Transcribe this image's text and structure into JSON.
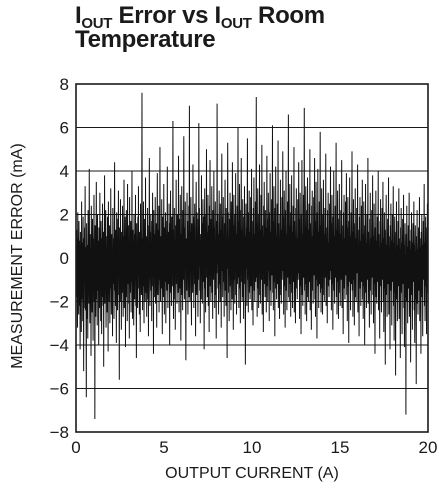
{
  "chart_data": {
    "type": "line",
    "title": {
      "part1": "I",
      "sub1": "OUT",
      "part2": " Error vs I",
      "sub2": "OUT",
      "part3": " Room",
      "line2": "Temperature"
    },
    "xlabel": "OUTPUT CURRENT (A)",
    "ylabel": "MEASUREMENT ERROR (mA)",
    "xlim": [
      0,
      20
    ],
    "ylim": [
      -8,
      8
    ],
    "xticks": [
      0,
      5,
      10,
      15,
      20
    ],
    "xtick_labels": [
      "0",
      "5",
      "10",
      "15",
      "20"
    ],
    "yticks": [
      -8,
      -6,
      -4,
      -2,
      0,
      2,
      4,
      6,
      8
    ],
    "ytick_labels": [
      "−8",
      "−6",
      "−4",
      "−2",
      "0",
      "2",
      "4",
      "6",
      "8"
    ],
    "grid": "horizontal",
    "series": [
      {
        "x_start": 0,
        "x_step": 0.02,
        "values": [
          0.3,
          -0.7,
          1.3,
          -1.8,
          0.9,
          -3.2,
          2.1,
          -1.2,
          0.4,
          -2.6,
          1.7,
          -0.9,
          -2.2,
          0.8,
          -4.2,
          1.2,
          -1.5,
          0.2,
          -3.4,
          2.6,
          -0.6,
          -1.9,
          0.7,
          -2.9,
          1.9,
          -0.4,
          -5.2,
          0.9,
          -2.3,
          1.4,
          -1.1,
          3.3,
          -2.4,
          0.5,
          -1.6,
          -6.4,
          1.6,
          -0.8,
          -2.8,
          0.6,
          -3.7,
          2.2,
          -1.4,
          0.1,
          -2.1,
          4.1,
          -0.9,
          -3.0,
          1.1,
          -1.7,
          0.3,
          -4.5,
          2.4,
          -1.2,
          -0.3,
          -2.5,
          1.8,
          -0.5,
          -3.8,
          0.9,
          -1.3,
          2.9,
          -2.0,
          0.4,
          -7.4,
          1.5,
          -1.0,
          -2.7,
          0.7,
          3.5,
          -1.9,
          0.2,
          -3.1,
          2.0,
          -0.7,
          -1.5,
          0.8,
          -4.0,
          1.4,
          -0.2,
          -2.3,
          3.0,
          -1.1,
          0.5,
          -2.9,
          1.7,
          -0.6,
          -3.5,
          0.9,
          -1.8,
          2.5,
          -0.4,
          -2.2,
          1.2,
          -5.0,
          0.6,
          -1.3,
          3.8,
          -2.1,
          0.3,
          -0.9,
          2.2,
          -3.2,
          1.0,
          -1.6,
          0.4,
          -2.5,
          1.9,
          -0.8,
          -4.3,
          2.6,
          -1.0,
          0.2,
          -2.0,
          1.5,
          -3.0,
          0.7,
          -1.4,
          3.2,
          -0.5,
          -2.6,
          1.1,
          -1.9,
          0.3,
          -3.6,
          2.3,
          -0.7,
          -1.2,
          0.9,
          -2.8,
          1.6,
          4.4,
          -1.5,
          0.1,
          -2.2,
          1.3,
          -0.6,
          -3.9,
          2.1,
          -1.1,
          0.5,
          -2.4,
          1.8,
          -0.9,
          3.1,
          -1.7,
          0.6,
          -5.6,
          1.4,
          -0.3,
          -2.0,
          2.7,
          -1.3,
          0.8,
          -3.3,
          1.2,
          -0.8,
          -1.6,
          2.4,
          -0.2,
          -2.7,
          1.0,
          -1.0,
          3.6,
          -2.3,
          0.4,
          -1.4,
          1.9,
          -4.1,
          0.7,
          -0.5,
          2.2,
          -1.8,
          0.9,
          -2.9,
          3.4,
          -0.7,
          -1.2,
          1.5,
          -2.1,
          0.3,
          -3.7,
          2.8,
          -0.9,
          0.6,
          -1.6,
          1.7,
          -2.5,
          0.2,
          -1.1,
          4.0,
          -0.4,
          -2.8,
          1.3,
          -1.5,
          0.8,
          -3.1,
          2.0,
          -0.6,
          -1.9,
          1.1,
          -0.2,
          2.9,
          -2.2,
          0.5,
          -4.6,
          1.6,
          -1.0,
          0.4,
          -2.3,
          1.9,
          -0.8,
          3.3,
          -1.4,
          0.7,
          -2.6,
          1.2,
          -0.3,
          -3.4,
          2.5,
          -1.2,
          0.1,
          -1.7,
          1.4,
          7.6,
          -0.9,
          -2.4,
          0.9,
          -1.3,
          2.6,
          -0.5,
          -3.0,
          1.8,
          -1.1,
          0.6,
          -2.0,
          3.7,
          -0.7,
          -1.6,
          1.0,
          -2.7,
          0.3,
          -0.4,
          2.3,
          -1.9,
          0.8,
          -3.6,
          1.5,
          -0.6,
          4.6,
          -1.0,
          -2.2,
          1.2,
          -0.2,
          2.0,
          -1.5,
          0.5,
          -2.9,
          1.7,
          -0.8,
          3.0,
          -1.3,
          0.9,
          -4.4,
          2.2,
          -0.5,
          -1.8,
          1.1,
          -0.1,
          2.8,
          -2.1,
          0.7,
          -1.2,
          1.6,
          -3.2,
          0.4,
          3.9,
          -0.9,
          -1.7,
          1.3,
          -0.3,
          2.4,
          -2.5,
          0.6,
          -1.0,
          5.1,
          -0.7,
          -2.0,
          1.0,
          0.2,
          -1.4,
          2.7,
          -0.6,
          -3.5,
          1.9,
          -0.9,
          0.8,
          -1.8,
          3.4,
          -0.2,
          -2.6,
          1.4,
          -1.1,
          0.5,
          2.1,
          -3.0,
          0.9,
          -0.4,
          1.7,
          -1.5,
          4.2,
          -0.8,
          -2.3,
          1.2,
          0.1,
          -1.2,
          2.5,
          -0.5,
          -4.0,
          1.6,
          -0.7,
          3.1,
          -1.6,
          0.6,
          -2.2,
          1.9,
          -0.3,
          0.9,
          -1.3,
          6.3,
          -0.9,
          -2.8,
          1.3,
          -0.1,
          2.3,
          -1.9,
          0.7,
          -3.3,
          1.5,
          -0.6,
          3.6,
          -1.2,
          0.3,
          -2.1,
          2.0,
          -0.8,
          1.0,
          -1.6,
          4.7,
          -0.4,
          -2.5,
          1.8,
          0.2,
          -1.4,
          2.9,
          -0.7,
          -3.8,
          1.1,
          -0.2,
          3.3,
          -1.7,
          0.8,
          -2.4,
          2.2,
          -1.0,
          0.5,
          5.6,
          -0.6,
          -1.9,
          1.4,
          -0.3,
          2.6,
          -1.1,
          -4.7,
          0.9,
          0.4,
          -1.5,
          3.0,
          -0.9,
          1.7,
          -2.6,
          0.6,
          -0.5,
          2.4,
          -1.8,
          7.0,
          -0.7,
          -2.0,
          1.2,
          0.1,
          2.8,
          -1.3,
          -3.1,
          1.6,
          -0.4,
          0.7,
          -1.6,
          4.3,
          -0.8,
          1.9,
          -2.3,
          0.3,
          -0.1,
          2.5,
          -1.2,
          0.9,
          -3.6,
          1.3,
          3.5,
          -0.6,
          -1.7,
          2.1,
          -0.2,
          0.5,
          -2.7,
          1.8,
          -1.0,
          6.2,
          -0.4,
          2.3,
          -1.5,
          0.8,
          -3.0,
          1.1,
          0.2,
          -1.9,
          3.8,
          -0.7,
          1.6,
          -2.1,
          0.4,
          2.7,
          -1.1,
          -0.3,
          1.9,
          -4.2,
          0.9,
          3.2,
          -1.4,
          0.6,
          -2.5,
          2.0,
          -0.5,
          5.0,
          -0.9,
          1.2,
          -1.8,
          0.3,
          2.9,
          -2.2,
          1.5,
          -0.6,
          -3.4,
          2.4,
          -0.1,
          4.5,
          -1.3,
          0.7,
          -2.0,
          1.8,
          -0.8,
          3.3,
          -1.6,
          0.5,
          -2.8,
          2.2,
          0.1,
          -1.0,
          4.0,
          -0.4,
          1.4,
          -2.3,
          0.9,
          2.6,
          -1.7,
          0.2,
          -3.7,
          1.7,
          -0.7,
          7.1,
          -0.3,
          2.0,
          -1.4,
          1.1,
          -2.6,
          0.6,
          3.1,
          -1.2,
          0.4,
          -2.0,
          2.5,
          -0.9,
          1.3,
          -3.2,
          0.8,
          4.8,
          -0.6,
          1.9,
          -1.8,
          0.3,
          2.8,
          -1.1,
          0.7,
          -2.7,
          1.6,
          -0.2,
          3.6,
          -1.5,
          1.0,
          -2.2,
          2.3,
          -0.8,
          0.5,
          -4.6,
          1.4,
          5.3,
          -0.5,
          2.1,
          -1.6,
          0.9,
          -2.9,
          1.8,
          -0.3,
          3.0,
          -1.3,
          0.6,
          -2.4,
          2.6,
          -0.7,
          1.2,
          -1.9,
          4.4,
          -0.1,
          1.5,
          -3.3,
          0.8,
          2.9,
          -1.0,
          0.4,
          -2.1,
          2.0,
          -0.6,
          3.9,
          -1.7,
          1.1,
          -2.6,
          0.7,
          2.4,
          -1.2,
          0.2,
          6.0,
          -0.9,
          1.7,
          -2.3,
          0.9,
          3.4,
          -1.4,
          0.5,
          -3.0,
          2.2,
          -0.4,
          4.6,
          -1.1,
          1.3,
          -2.0,
          0.6,
          2.7,
          -1.8,
          0.3,
          -2.8,
          1.9,
          -0.7,
          3.3,
          -1.2,
          1.0,
          -4.9,
          0.8,
          2.5,
          -0.5,
          1.4,
          -2.2,
          0.9,
          5.5,
          -1.0,
          0.4,
          -2.5,
          2.1,
          -0.3,
          3.1,
          -1.6,
          1.2,
          -1.9,
          0.6,
          2.8,
          -1.3,
          -0.1,
          4.1,
          -2.4,
          1.7,
          -0.6,
          0.9,
          -3.1,
          2.3,
          -0.8,
          3.7,
          -1.5,
          1.1,
          -2.0,
          0.5,
          2.6,
          -1.1,
          0.2,
          7.4,
          -0.9,
          1.6,
          -2.7,
          0.8,
          3.2,
          -1.4,
          0.4,
          -2.3,
          2.0,
          -0.5,
          4.3,
          -1.7,
          1.3,
          -2.1,
          0.7,
          2.9,
          -1.0,
          -0.2,
          5.2,
          -2.6,
          1.5,
          -0.7,
          1.0,
          -3.4,
          2.4,
          -0.4,
          3.5,
          -1.2,
          0.6,
          -1.8,
          2.2,
          -0.9,
          1.4,
          -2.5,
          0.3,
          4.7,
          -1.3,
          1.8,
          -2.0,
          0.8,
          3.0,
          -0.6,
          0.1,
          -2.9,
          2.1,
          -1.0,
          3.9,
          -1.5,
          1.2,
          -2.2,
          0.5,
          2.7,
          -0.8,
          0.4,
          6.1,
          -1.6,
          1.7,
          -2.4,
          0.9,
          3.3,
          -1.1,
          0.6,
          -3.6,
          2.3,
          -0.3,
          4.2,
          -1.4,
          1.0,
          -1.9,
          0.7,
          2.5,
          -1.2,
          0.2,
          5.4,
          -2.3,
          1.6,
          -0.5,
          0.8,
          -2.8,
          2.0,
          -0.9,
          3.6,
          -1.7,
          1.3,
          -2.1,
          0.4,
          2.8,
          -1.0,
          0.5,
          4.9,
          -0.6,
          1.9,
          -2.6,
          0.9,
          3.1,
          -1.3,
          0.3,
          -3.2,
          2.2,
          -0.7,
          4.0,
          -1.5,
          1.1,
          -2.4,
          0.6,
          2.6,
          -0.9,
          0.1,
          6.6,
          -1.8,
          1.5,
          -2.0,
          0.8,
          3.4,
          -1.2,
          0.5,
          -2.7,
          2.1,
          -0.4,
          3.8,
          -1.6,
          1.2,
          -2.3,
          0.7,
          2.4,
          -1.1,
          0.3,
          5.1,
          -2.5,
          1.7,
          -0.6,
          1.0,
          -3.0,
          2.3,
          -0.8,
          3.2,
          -1.4,
          0.9,
          -1.9,
          0.4,
          2.7,
          -1.0,
          0.2,
          4.4,
          -0.7,
          1.8,
          -2.8,
          0.9,
          3.0,
          -1.3,
          0.6,
          -3.5,
          2.0,
          -0.5,
          4.5,
          -1.7,
          1.1,
          -2.2,
          0.5,
          2.9,
          -0.9,
          0.4,
          6.9,
          -1.5,
          1.4,
          -2.6,
          0.8,
          3.3,
          -1.2,
          0.3,
          -2.9,
          2.2,
          -0.3,
          3.7,
          -1.8,
          1.3,
          -2.0,
          0.6,
          2.5,
          -1.1,
          0.1,
          5.0,
          -2.4,
          1.6,
          -0.7,
          0.9,
          -3.3,
          2.4,
          -0.6,
          3.1,
          -1.5,
          1.0,
          -2.1,
          0.5,
          2.8,
          -0.8,
          0.3,
          4.6,
          -1.9,
          1.7,
          -2.7,
          0.7,
          3.5,
          -1.0,
          0.6,
          -3.7,
          2.1,
          -0.4,
          4.1,
          -1.3,
          1.2,
          -2.3,
          0.4,
          2.6,
          -1.2,
          0.2,
          5.8,
          -1.6,
          1.5,
          -2.5,
          0.8,
          3.2,
          -1.4,
          0.5,
          -2.6,
          2.0,
          -0.7,
          3.6,
          -1.7,
          1.1,
          -2.0,
          0.6,
          2.3,
          -0.9,
          -0.1,
          4.8,
          -2.2,
          1.4,
          -0.5,
          0.9,
          -3.0,
          2.2,
          -0.8,
          3.0,
          -1.3,
          0.7,
          -1.8,
          0.3,
          2.5,
          -1.0,
          0.4,
          4.2,
          -0.6,
          1.6,
          -2.4,
          0.8,
          2.9,
          -1.2,
          0.2,
          -3.3,
          1.9,
          -0.5,
          4.0,
          -1.5,
          1.0,
          -2.1,
          0.5,
          2.4,
          -0.9,
          0.3,
          5.3,
          -1.8,
          1.3,
          -2.6,
          0.7,
          3.1,
          -1.1,
          0.4,
          -2.8,
          1.8,
          -0.3,
          3.4,
          -1.6,
          1.1,
          -2.2,
          0.6,
          2.2,
          -1.0,
          0.1,
          4.5,
          -2.3,
          1.5,
          -0.6,
          0.8,
          -3.5,
          2.1,
          -0.7,
          2.9,
          -1.4,
          0.9,
          -1.9,
          0.2,
          2.6,
          -0.8,
          0.5,
          3.9,
          -1.7,
          1.4,
          -2.9,
          0.6,
          2.8,
          -1.3,
          0.3,
          -3.9,
          1.7,
          -0.4,
          3.7,
          -1.1,
          1.0,
          -2.4,
          0.4,
          2.1,
          -1.2,
          0.2,
          4.9,
          -1.5,
          1.2,
          -2.7,
          0.7,
          2.7,
          -1.0,
          0.5,
          -3.1,
          1.6,
          -0.6,
          3.2,
          -1.8,
          0.9,
          -2.0,
          0.3,
          2.3,
          -0.7,
          -0.2,
          4.3,
          -2.5,
          1.3,
          -0.9,
          0.6,
          -3.6,
          1.9,
          -0.5,
          2.8,
          -1.4,
          0.8,
          -2.2,
          0.1,
          2.4,
          -1.1,
          0.4,
          3.6,
          -1.9,
          1.1,
          -2.8,
          0.5,
          2.6,
          -1.3,
          0.2,
          -4.0,
          1.5,
          -0.8,
          3.4,
          -1.6,
          0.7,
          -2.3,
          0.3,
          2.0,
          -1.0,
          0.1,
          4.6,
          -2.1,
          1.2,
          -0.7,
          0.6,
          -3.2,
          1.8,
          -0.4,
          3.0,
          -1.5,
          0.9,
          -2.6,
          0.2,
          2.2,
          -0.9,
          0.4,
          3.8,
          -1.7,
          1.0,
          -3.0,
          0.5,
          2.5,
          -1.2,
          -0.1,
          -4.4,
          1.4,
          -0.6,
          3.1,
          -1.8,
          0.8,
          -2.1,
          0.2,
          1.9,
          -1.1,
          0.3,
          4.0,
          -2.4,
          1.1,
          -0.8,
          0.5,
          -3.7,
          1.7,
          -0.5,
          2.7,
          -1.3,
          0.7,
          -2.5,
          0.1,
          2.3,
          -1.0,
          0.3,
          3.5,
          -2.0,
          0.9,
          -3.4,
          0.4,
          2.1,
          -1.4,
          -0.2,
          -4.9,
          1.3,
          -0.9,
          2.9,
          -1.7,
          0.6,
          -2.7,
          0.2,
          1.8,
          -1.2,
          0.1,
          3.7,
          -2.6,
          1.0,
          -0.7,
          0.4,
          -4.2,
          1.5,
          -0.6,
          2.5,
          -1.5,
          0.8,
          -3.1,
          0.3,
          2.0,
          -1.1,
          -0.1,
          3.3,
          -2.2,
          0.7,
          -3.8,
          0.5,
          1.9,
          -1.6,
          0.2,
          -5.4,
          1.2,
          -0.8,
          2.6,
          -1.9,
          0.6,
          -2.9,
          0.1,
          1.7,
          -1.3,
          0.3,
          3.2,
          -2.8,
          0.9,
          -0.9,
          0.4,
          -4.6,
          1.4,
          -0.5,
          2.3,
          -1.6,
          0.7,
          -3.5,
          0.2,
          1.8,
          -1.2,
          -0.3,
          2.9,
          -2.3,
          0.6,
          -4.1,
          0.4,
          1.6,
          -1.8,
          0.1,
          -7.2,
          1.1,
          -0.7,
          2.4,
          -2.0,
          0.5,
          -3.0,
          0.3,
          1.5,
          -1.4,
          0.2,
          3.0,
          -2.7,
          0.8,
          -1.0,
          0.4,
          -4.8,
          1.3,
          -0.6,
          2.1,
          -1.7,
          0.7,
          -3.3,
          0.2,
          1.6,
          -1.1,
          -0.2,
          2.6,
          -2.4,
          0.6,
          -3.9,
          0.5,
          1.5,
          -1.9,
          0.3,
          -5.8,
          1.0,
          -0.8,
          2.2,
          -2.1,
          0.4,
          -2.6,
          0.2,
          1.4,
          -1.5,
          0.1,
          2.8,
          -2.9,
          0.9,
          -1.1,
          0.5,
          -4.4,
          1.2,
          -0.5,
          2.0,
          -1.8,
          0.6,
          -3.6,
          0.3,
          1.7,
          -1.0,
          0.2,
          3.4,
          -2.2,
          0.7,
          -2.9,
          0.4,
          1.9,
          -1.3,
          0.1,
          -3.5,
          1.4,
          -0.7,
          2.5,
          -1.6,
          0.8
        ]
      }
    ]
  }
}
